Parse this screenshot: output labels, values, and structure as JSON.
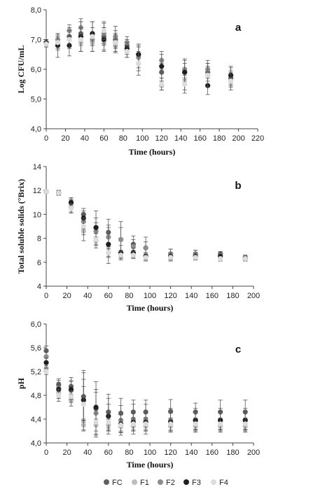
{
  "legend": [
    {
      "name": "FC",
      "color": "#5f5f5f"
    },
    {
      "name": "F1",
      "color": "#bdbdbd"
    },
    {
      "name": "F2",
      "color": "#8e8e8e"
    },
    {
      "name": "F3",
      "color": "#1f1f1f"
    },
    {
      "name": "F4",
      "color": "#dcdcdc"
    }
  ],
  "chart_data": [
    {
      "type": "scatter",
      "panel_label": "a",
      "xlabel": "Time (hours)",
      "ylabel": "Log CFU/mL",
      "xlim": [
        0,
        220
      ],
      "ylim": [
        4.0,
        8.0
      ],
      "xticks": [
        "0",
        "20",
        "40",
        "60",
        "80",
        "100",
        "120",
        "140",
        "160",
        "180",
        "200",
        "220"
      ],
      "yticks": [
        "4,0",
        "5,0",
        "6,0",
        "7,0",
        "8,0"
      ],
      "x": [
        0,
        12,
        24,
        36,
        48,
        60,
        72,
        84,
        96,
        120,
        144,
        168,
        192
      ],
      "series": [
        {
          "name": "FC",
          "values": [
            6.9,
            6.9,
            7.1,
            7.2,
            7.2,
            7.1,
            7.0,
            6.8,
            6.5,
            5.9,
            5.9,
            5.9,
            5.7
          ],
          "errors": [
            0.1,
            0.25,
            0.3,
            0.4,
            0.4,
            0.3,
            0.3,
            0.2,
            0.3,
            0.3,
            0.3,
            0.3,
            0.25
          ]
        },
        {
          "name": "F1",
          "values": [
            6.85,
            7.0,
            7.0,
            6.9,
            6.9,
            6.9,
            6.8,
            6.6,
            6.2,
            5.45,
            5.5,
            5.8,
            5.6
          ],
          "errors": [
            0.1,
            0.2,
            0.25,
            0.3,
            0.3,
            0.25,
            0.25,
            0.2,
            0.25,
            0.15,
            0.2,
            0.3,
            0.2
          ]
        },
        {
          "name": "F2",
          "values": [
            6.9,
            7.0,
            7.3,
            7.4,
            7.0,
            7.2,
            7.1,
            6.9,
            6.4,
            6.3,
            6.0,
            6.0,
            5.8
          ],
          "errors": [
            0.1,
            0.2,
            0.2,
            0.3,
            0.4,
            0.35,
            0.35,
            0.2,
            0.35,
            0.3,
            0.35,
            0.3,
            0.25
          ]
        },
        {
          "name": "F3",
          "values": [
            6.9,
            6.8,
            6.8,
            7.1,
            7.2,
            7.0,
            6.9,
            6.7,
            6.5,
            6.1,
            5.9,
            5.45,
            5.8
          ],
          "errors": [
            0.1,
            0.4,
            0.35,
            0.5,
            0.4,
            0.4,
            0.3,
            0.2,
            0.35,
            0.4,
            0.4,
            0.3,
            0.3
          ]
        },
        {
          "name": "F4",
          "values": [
            6.85,
            6.9,
            7.0,
            7.0,
            7.1,
            7.3,
            6.9,
            6.6,
            6.2,
            5.5,
            5.5,
            5.8,
            5.6
          ],
          "errors": [
            0.1,
            0.2,
            0.3,
            0.4,
            0.5,
            0.3,
            0.3,
            0.2,
            0.4,
            0.2,
            0.3,
            0.4,
            0.3
          ]
        }
      ]
    },
    {
      "type": "scatter",
      "panel_label": "b",
      "xlabel": "Time (hours)",
      "ylabel": "Total soluble solids (°Brix)",
      "xlim": [
        0,
        200
      ],
      "ylim": [
        4,
        14
      ],
      "xticks": [
        "0",
        "20",
        "40",
        "60",
        "80",
        "100",
        "120",
        "140",
        "160",
        "180",
        "200"
      ],
      "yticks": [
        "4",
        "6",
        "8",
        "10",
        "12",
        "14"
      ],
      "x": [
        0,
        12,
        24,
        36,
        48,
        60,
        72,
        84,
        96,
        120,
        144,
        168,
        192
      ],
      "series": [
        {
          "name": "FC",
          "values": [
            11.9,
            11.8,
            11.0,
            10.0,
            8.9,
            8.5,
            7.9,
            7.5,
            7.2,
            6.7,
            6.7,
            6.7,
            6.4
          ],
          "errors": [
            0.1,
            0.2,
            0.3,
            0.5,
            0.8,
            1.1,
            1.5,
            0.7,
            0.9,
            0.4,
            0.3,
            0.2,
            0.2
          ]
        },
        {
          "name": "F1",
          "values": [
            11.9,
            11.8,
            10.6,
            8.6,
            7.8,
            6.8,
            6.7,
            6.7,
            6.5,
            6.4,
            6.4,
            6.4,
            6.3
          ],
          "errors": [
            0.1,
            0.2,
            0.4,
            0.8,
            0.6,
            0.4,
            0.3,
            0.3,
            0.3,
            0.3,
            0.2,
            0.2,
            0.2
          ]
        },
        {
          "name": "F2",
          "values": [
            11.9,
            11.8,
            10.9,
            9.4,
            8.6,
            8.1,
            7.9,
            7.3,
            7.2,
            6.7,
            6.7,
            6.6,
            6.4
          ],
          "errors": [
            0.1,
            0.2,
            0.3,
            0.6,
            0.7,
            0.8,
            1.0,
            0.6,
            0.5,
            0.4,
            0.3,
            0.2,
            0.2
          ]
        },
        {
          "name": "F3",
          "values": [
            11.9,
            11.8,
            11.0,
            9.7,
            8.9,
            7.5,
            6.8,
            6.8,
            6.5,
            6.5,
            6.5,
            6.5,
            6.3
          ],
          "errors": [
            0.1,
            0.2,
            0.4,
            0.6,
            1.4,
            1.6,
            0.6,
            0.4,
            0.3,
            0.3,
            0.3,
            0.3,
            0.2
          ]
        },
        {
          "name": "F4",
          "values": [
            11.9,
            11.8,
            10.5,
            9.0,
            7.9,
            6.8,
            6.6,
            6.6,
            6.4,
            6.4,
            6.4,
            6.3,
            6.3
          ],
          "errors": [
            0.1,
            0.2,
            0.4,
            0.7,
            0.5,
            0.3,
            0.3,
            0.3,
            0.3,
            0.2,
            0.2,
            0.2,
            0.2
          ]
        }
      ]
    },
    {
      "type": "scatter",
      "panel_label": "c",
      "xlabel": "Time (hours)",
      "ylabel": "pH",
      "xlim": [
        0,
        200
      ],
      "ylim": [
        4.0,
        6.0
      ],
      "xticks": [
        "0",
        "20",
        "40",
        "60",
        "80",
        "100",
        "120",
        "140",
        "160",
        "180",
        "200"
      ],
      "yticks": [
        "4,0",
        "4,4",
        "4,8",
        "5,2",
        "5,6",
        "6,0"
      ],
      "x": [
        0,
        12,
        24,
        36,
        48,
        60,
        72,
        84,
        96,
        120,
        144,
        168,
        192
      ],
      "series": [
        {
          "name": "FC",
          "values": [
            5.55,
            4.98,
            4.95,
            4.78,
            4.58,
            4.52,
            4.5,
            4.52,
            4.52,
            4.53,
            4.52,
            4.52,
            4.52
          ],
          "errors": [
            0.08,
            0.1,
            0.15,
            0.4,
            0.45,
            0.3,
            0.25,
            0.2,
            0.2,
            0.2,
            0.15,
            0.2,
            0.2
          ]
        },
        {
          "name": "F1",
          "values": [
            5.25,
            4.85,
            4.72,
            4.3,
            4.3,
            4.3,
            4.28,
            4.28,
            4.28,
            4.28,
            4.28,
            4.28,
            4.28
          ],
          "errors": [
            0.05,
            0.1,
            0.1,
            0.1,
            0.1,
            0.1,
            0.1,
            0.08,
            0.08,
            0.08,
            0.08,
            0.08,
            0.08
          ]
        },
        {
          "name": "F2",
          "values": [
            5.45,
            4.92,
            4.88,
            4.72,
            4.5,
            4.45,
            4.38,
            4.4,
            4.4,
            4.38,
            4.38,
            4.38,
            4.38
          ],
          "errors": [
            0.08,
            0.1,
            0.15,
            0.5,
            0.4,
            0.3,
            0.25,
            0.25,
            0.25,
            0.2,
            0.2,
            0.2,
            0.2
          ]
        },
        {
          "name": "F3",
          "values": [
            5.35,
            4.9,
            4.9,
            4.72,
            4.6,
            4.45,
            4.32,
            4.35,
            4.35,
            4.35,
            4.38,
            4.38,
            4.38
          ],
          "errors": [
            0.08,
            0.15,
            0.15,
            0.35,
            0.25,
            0.2,
            0.15,
            0.15,
            0.15,
            0.15,
            0.15,
            0.15,
            0.15
          ]
        },
        {
          "name": "F4",
          "values": [
            5.2,
            4.8,
            4.78,
            4.65,
            4.35,
            4.35,
            4.3,
            4.32,
            4.32,
            4.32,
            4.32,
            4.32,
            4.32
          ],
          "errors": [
            0.05,
            0.1,
            0.1,
            0.3,
            0.2,
            0.15,
            0.1,
            0.1,
            0.1,
            0.1,
            0.1,
            0.1,
            0.1
          ]
        }
      ]
    }
  ]
}
